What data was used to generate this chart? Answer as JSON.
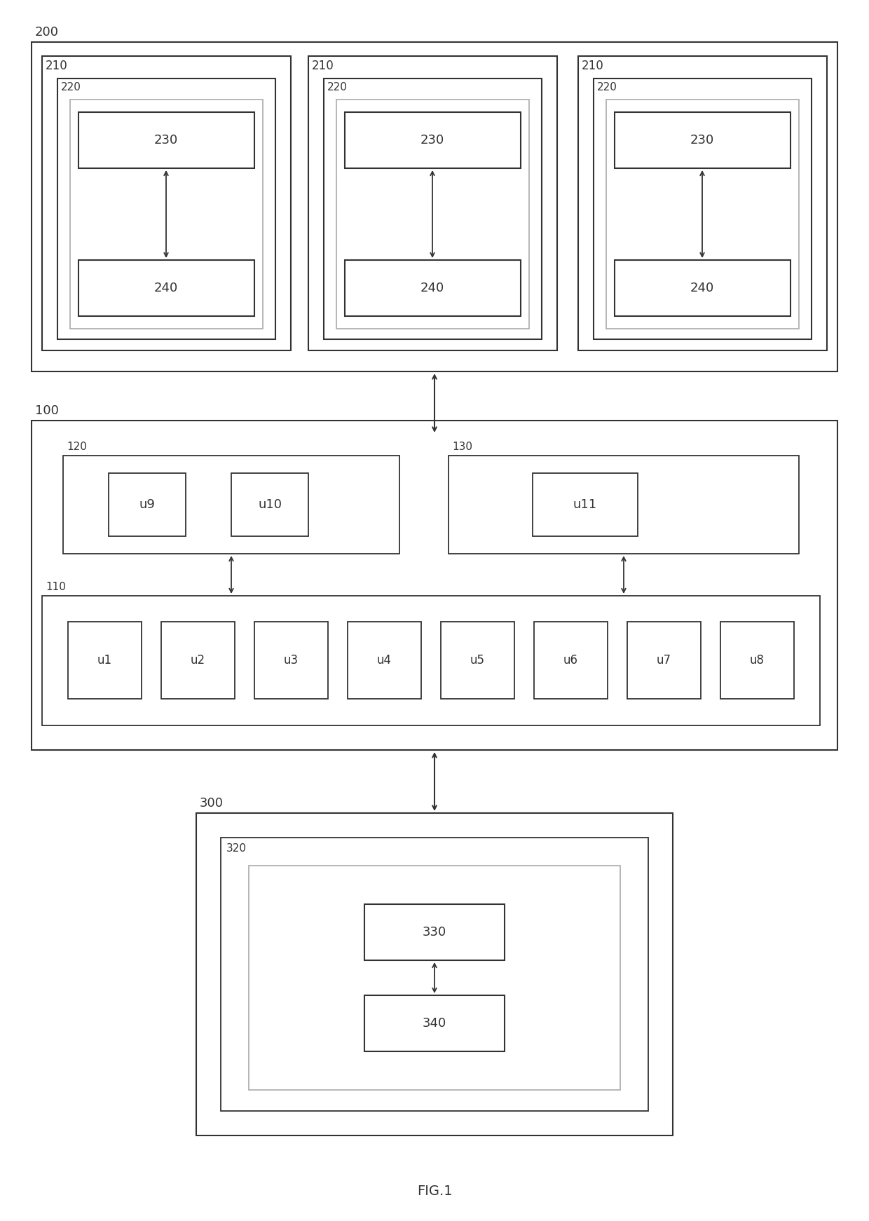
{
  "bg_color": "#ffffff",
  "ec_dark": "#333333",
  "ec_light": "#aaaaaa",
  "tc": "#333333",
  "fig_label": "FIG.1",
  "figw": 12.4,
  "figh": 17.42,
  "dpi": 100,
  "sec200_label": "200",
  "sec100_label": "100",
  "sec300_label": "300",
  "units_u": [
    "u1",
    "u2",
    "u3",
    "u4",
    "u5",
    "u6",
    "u7",
    "u8"
  ]
}
